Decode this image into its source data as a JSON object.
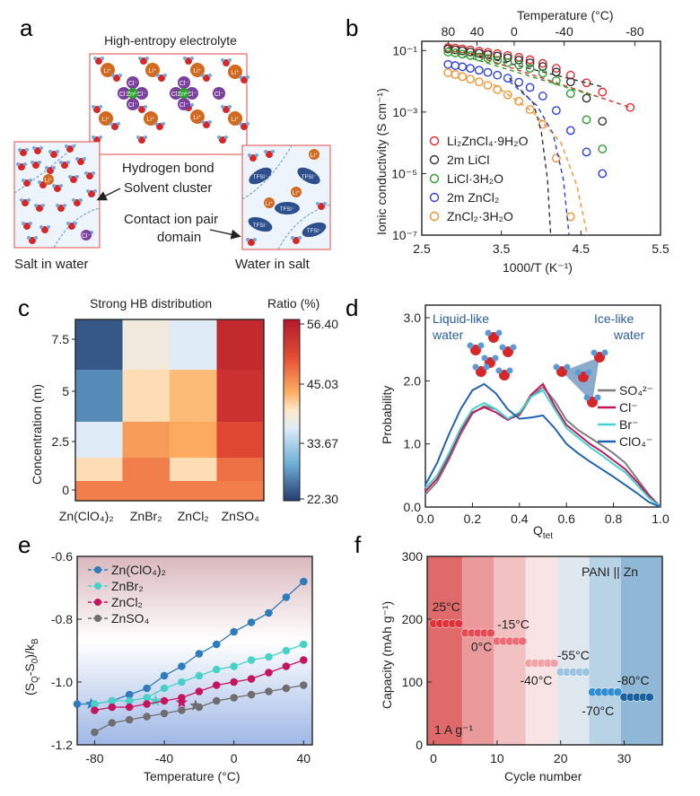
{
  "panel_labels": {
    "a": "a",
    "b": "b",
    "c": "c",
    "d": "d",
    "e": "e",
    "f": "f"
  },
  "panel_a": {
    "title": "High-entropy electrolyte",
    "label_hbond": "Hydrogen bond",
    "label_cluster": "Solvent cluster",
    "label_contact": "Contact ion pair",
    "label_domain": "domain",
    "label_salt_in_water": "Salt in water",
    "label_water_in_salt": "Water in salt",
    "ion_labels": {
      "li": "Li⁺",
      "cl": "Cl⁻",
      "zn": "Zn²⁺",
      "tfsi": "TFSI⁻"
    }
  },
  "chart_data": [
    {
      "panel": "b",
      "type": "scatter",
      "xlabel": "1000/T (K⁻¹)",
      "ylabel": "Ionic conductivity (S cm⁻¹)",
      "top_label": "Temperature (°C)",
      "top_ticks": [
        "80",
        "40",
        "0",
        "-40",
        "-80"
      ],
      "top_tick_temps_c": [
        80,
        40,
        0,
        -40,
        -80
      ],
      "xlim": [
        2.5,
        5.5
      ],
      "x_ticks": [
        "2.5",
        "3.5",
        "4.5",
        "5.5"
      ],
      "ylim_log10": [
        -7,
        -0.7
      ],
      "y_ticks": [
        "10⁻¹",
        "10⁻³",
        "10⁻⁵",
        "10⁻⁷"
      ],
      "y_tick_exp": [
        -1,
        -3,
        -5,
        -7
      ],
      "series": [
        {
          "name": "Li₂ZnCl₄·9H₂O",
          "color": "#e8292e",
          "x": [
            2.83,
            2.92,
            3.01,
            3.11,
            3.22,
            3.33,
            3.45,
            3.58,
            3.72,
            3.86,
            4.02,
            4.19,
            4.37,
            4.57,
            4.77,
            5.12
          ],
          "log10y": [
            -0.9,
            -0.92,
            -0.95,
            -0.98,
            -1.02,
            -1.06,
            -1.1,
            -1.16,
            -1.22,
            -1.3,
            -1.42,
            -1.58,
            -1.8,
            -2.05,
            -2.35,
            -2.85
          ],
          "fit_x": [
            2.83,
            5.12
          ],
          "fit_log10y": [
            -0.88,
            -2.85
          ]
        },
        {
          "name": "2m LiCl",
          "color": "#333333",
          "x": [
            2.83,
            2.92,
            3.01,
            3.11,
            3.22,
            3.33,
            3.45,
            3.58,
            3.72,
            3.86,
            4.02,
            4.19,
            4.37,
            4.57,
            4.77
          ],
          "log10y": [
            -0.95,
            -0.98,
            -1.01,
            -1.05,
            -1.09,
            -1.13,
            -1.18,
            -1.24,
            -1.31,
            -1.4,
            -1.52,
            -1.7,
            -2.02,
            -2.55,
            -3.3
          ],
          "fit_x": [
            2.83,
            4.8
          ],
          "fit_log10y": [
            -0.92,
            -2.2
          ]
        },
        {
          "name": "LiCl·3H₂O",
          "color": "#2ca02c",
          "x": [
            2.83,
            2.92,
            3.01,
            3.11,
            3.22,
            3.33,
            3.45,
            3.58,
            3.72,
            3.86,
            4.02,
            4.19,
            4.37,
            4.57,
            4.77
          ],
          "log10y": [
            -1.05,
            -1.08,
            -1.12,
            -1.16,
            -1.21,
            -1.26,
            -1.32,
            -1.39,
            -1.47,
            -1.58,
            -1.74,
            -1.98,
            -2.4,
            -3.25,
            -4.2
          ],
          "fit_x": [
            2.83,
            4.7
          ],
          "fit_log10y": [
            -1.02,
            -2.5
          ]
        },
        {
          "name": "2m ZnCl₂",
          "color": "#2c3fe0",
          "x": [
            2.83,
            2.92,
            3.01,
            3.11,
            3.22,
            3.33,
            3.45,
            3.58,
            3.72,
            3.86,
            4.02,
            4.19,
            4.37,
            4.57,
            4.77
          ],
          "log10y": [
            -1.45,
            -1.49,
            -1.53,
            -1.58,
            -1.64,
            -1.71,
            -1.8,
            -1.9,
            -2.03,
            -2.2,
            -2.48,
            -2.95,
            -3.6,
            -4.3,
            -5.0
          ]
        },
        {
          "name": "ZnCl₂·3H₂O",
          "color": "#f3922e",
          "x": [
            2.83,
            2.92,
            3.01,
            3.11,
            3.22,
            3.33,
            3.45,
            3.58,
            3.72,
            3.86,
            4.02,
            4.19,
            4.37
          ],
          "log10y": [
            -1.72,
            -1.78,
            -1.85,
            -1.93,
            -2.02,
            -2.13,
            -2.27,
            -2.44,
            -2.65,
            -2.92,
            -3.4,
            -4.5,
            -6.4
          ]
        }
      ],
      "vtf_curves": [
        {
          "color": "#333333",
          "x": [
            3.6,
            3.9,
            4.0,
            4.08,
            4.12
          ],
          "log10y": [
            -1.9,
            -2.7,
            -3.6,
            -5.2,
            -7.0
          ]
        },
        {
          "color": "#2c3fe0",
          "x": [
            3.6,
            3.95,
            4.15,
            4.28,
            4.35
          ],
          "log10y": [
            -2.0,
            -2.8,
            -3.7,
            -5.2,
            -7.0
          ]
        },
        {
          "color": "#f3922e",
          "x": [
            3.4,
            3.9,
            4.25,
            4.45,
            4.58
          ],
          "log10y": [
            -2.1,
            -3.0,
            -4.0,
            -5.4,
            -7.0
          ]
        }
      ]
    },
    {
      "panel": "c",
      "type": "heatmap",
      "title": "Strong HB distribution",
      "colorbar_title": "Ratio (%)",
      "colorbar_ticks": [
        "56.40",
        "45.03",
        "33.67",
        "22.30"
      ],
      "vmin": 22.3,
      "vmax": 56.4,
      "ylabel": "Concentration (m)",
      "y_ticks": [
        "7.5",
        "5",
        "2.5",
        "0"
      ],
      "columns": [
        "Zn(ClO₄)₂",
        "ZnBr₂",
        "ZnCl₂",
        "ZnSO₄"
      ],
      "row_concentrations": [
        7.5,
        5,
        2.5,
        1,
        0
      ],
      "values": [
        [
          24,
          38,
          36,
          54
        ],
        [
          27,
          40,
          42,
          53
        ],
        [
          36,
          44,
          43,
          50
        ],
        [
          40,
          46,
          40,
          47
        ],
        [
          46,
          46,
          46,
          46
        ]
      ]
    },
    {
      "panel": "d",
      "type": "line",
      "xlabel": "Q_tet",
      "ylabel": "Probability",
      "xlim": [
        0,
        1
      ],
      "ylim": [
        0,
        3.2
      ],
      "x_ticks": [
        "0.0",
        "0.2",
        "0.4",
        "0.6",
        "0.8",
        "1.0"
      ],
      "y_ticks": [
        "0.0",
        "1.0",
        "2.0",
        "3.0"
      ],
      "label_liquid": "Liquid-like\nwater",
      "label_ice": "Ice-like\nwater",
      "series": [
        {
          "name": "SO₄²⁻",
          "color": "#7f7f7f",
          "x": [
            0,
            0.05,
            0.1,
            0.15,
            0.2,
            0.25,
            0.3,
            0.35,
            0.4,
            0.45,
            0.5,
            0.55,
            0.6,
            0.65,
            0.7,
            0.75,
            0.8,
            0.85,
            0.9,
            0.95,
            1.0
          ],
          "y": [
            0.2,
            0.4,
            0.75,
            1.15,
            1.48,
            1.6,
            1.55,
            1.4,
            1.45,
            1.75,
            1.9,
            1.68,
            1.38,
            1.22,
            1.1,
            0.98,
            0.85,
            0.7,
            0.45,
            0.2,
            0.0
          ]
        },
        {
          "name": "Cl⁻",
          "color": "#c2185b",
          "x": [
            0,
            0.05,
            0.1,
            0.15,
            0.2,
            0.25,
            0.3,
            0.35,
            0.4,
            0.45,
            0.5,
            0.55,
            0.6,
            0.65,
            0.7,
            0.75,
            0.8,
            0.85,
            0.9,
            0.95,
            1.0
          ],
          "y": [
            0.25,
            0.45,
            0.8,
            1.2,
            1.5,
            1.58,
            1.5,
            1.38,
            1.48,
            1.78,
            1.95,
            1.6,
            1.3,
            1.15,
            1.0,
            0.88,
            0.74,
            0.6,
            0.4,
            0.18,
            0.0
          ]
        },
        {
          "name": "Br⁻",
          "color": "#3fd3d3",
          "x": [
            0,
            0.05,
            0.1,
            0.15,
            0.2,
            0.25,
            0.3,
            0.35,
            0.4,
            0.45,
            0.5,
            0.55,
            0.6,
            0.65,
            0.7,
            0.75,
            0.8,
            0.85,
            0.9,
            0.95,
            1.0
          ],
          "y": [
            0.3,
            0.5,
            0.85,
            1.25,
            1.55,
            1.65,
            1.55,
            1.4,
            1.5,
            1.75,
            1.85,
            1.55,
            1.25,
            1.1,
            0.95,
            0.82,
            0.68,
            0.55,
            0.35,
            0.15,
            0.0
          ]
        },
        {
          "name": "ClO₄⁻",
          "color": "#1f63b0",
          "x": [
            0,
            0.05,
            0.1,
            0.15,
            0.2,
            0.25,
            0.3,
            0.35,
            0.4,
            0.45,
            0.5,
            0.55,
            0.6,
            0.65,
            0.7,
            0.75,
            0.8,
            0.85,
            0.9,
            0.95,
            1.0
          ],
          "y": [
            0.35,
            0.7,
            1.15,
            1.55,
            1.85,
            1.95,
            1.8,
            1.55,
            1.4,
            1.42,
            1.45,
            1.25,
            1.0,
            0.85,
            0.72,
            0.6,
            0.48,
            0.35,
            0.22,
            0.08,
            0.0
          ]
        }
      ]
    },
    {
      "panel": "e",
      "type": "line",
      "xlabel": "Temperature (°C)",
      "ylabel": "(S_Q-S_0)/k_B",
      "xlim": [
        -90,
        45
      ],
      "ylim": [
        -1.2,
        -0.6
      ],
      "x_ticks": [
        "-80",
        "-40",
        "0",
        "40"
      ],
      "x_tick_values": [
        -80,
        -40,
        0,
        40
      ],
      "y_ticks": [
        "-0.6",
        "-0.8",
        "-1.0",
        "-1.2"
      ],
      "y_tick_values": [
        -0.6,
        -0.8,
        -1.0,
        -1.2
      ],
      "series": [
        {
          "name": "Zn(ClO₄)₂",
          "color": "#2e7bbd",
          "x": [
            -90,
            -80,
            -70,
            -60,
            -50,
            -40,
            -30,
            -20,
            -10,
            0,
            10,
            20,
            30,
            40
          ],
          "y": [
            -1.07,
            -1.07,
            -1.06,
            -1.04,
            -1.02,
            -0.98,
            -0.95,
            -0.91,
            -0.88,
            -0.84,
            -0.81,
            -0.78,
            -0.73,
            -0.68
          ],
          "star_x": -82,
          "star_y": -1.07
        },
        {
          "name": "ZnBr₂",
          "color": "#48d1c6",
          "x": [
            -80,
            -70,
            -60,
            -50,
            -40,
            -30,
            -20,
            -10,
            0,
            10,
            20,
            30,
            40
          ],
          "y": [
            -1.07,
            -1.06,
            -1.06,
            -1.05,
            -1.02,
            -1.0,
            -0.98,
            -0.96,
            -0.95,
            -0.93,
            -0.92,
            -0.9,
            -0.88
          ],
          "star_x": -45,
          "star_y": -1.06
        },
        {
          "name": "ZnCl₂",
          "color": "#c3155d",
          "x": [
            -80,
            -70,
            -60,
            -50,
            -40,
            -30,
            -20,
            -10,
            0,
            10,
            20,
            30,
            40
          ],
          "y": [
            -1.09,
            -1.08,
            -1.08,
            -1.07,
            -1.06,
            -1.05,
            -1.03,
            -1.01,
            -1.0,
            -0.99,
            -0.97,
            -0.95,
            -0.93
          ],
          "star_x": -30,
          "star_y": -1.065
        },
        {
          "name": "ZnSO₄",
          "color": "#6e6e6e",
          "x": [
            -80,
            -70,
            -60,
            -50,
            -40,
            -30,
            -20,
            -10,
            0,
            10,
            20,
            30,
            40
          ],
          "y": [
            -1.16,
            -1.13,
            -1.12,
            -1.11,
            -1.1,
            -1.09,
            -1.08,
            -1.06,
            -1.05,
            -1.04,
            -1.03,
            -1.02,
            -1.01
          ],
          "star_x": -22,
          "star_y": -1.075
        }
      ]
    },
    {
      "panel": "f",
      "type": "scatter",
      "xlabel": "Cycle number",
      "ylabel": "Capacity (mAh g⁻¹)",
      "xlim": [
        -1,
        36
      ],
      "ylim": [
        0,
        300
      ],
      "x_ticks": [
        "0",
        "10",
        "20",
        "30"
      ],
      "x_tick_values": [
        0,
        10,
        20,
        30
      ],
      "y_ticks": [
        "0",
        "100",
        "200",
        "300"
      ],
      "y_tick_values": [
        0,
        100,
        200,
        300
      ],
      "system_label": "PANI || Zn",
      "current_label": "1 A g⁻¹",
      "segments": [
        {
          "label": "25°C",
          "start": 0,
          "end": 4,
          "capacity": 193,
          "bg": "#e06a6a",
          "dot": "#e0303a"
        },
        {
          "label": "0°C",
          "start": 5,
          "end": 9,
          "capacity": 178,
          "bg": "#ea9a9a",
          "dot": "#e84a55"
        },
        {
          "label": "-15°C",
          "start": 10,
          "end": 14,
          "capacity": 165,
          "bg": "#f2c2c2",
          "dot": "#ef6a74"
        },
        {
          "label": "-40°C",
          "start": 15,
          "end": 19,
          "capacity": 130,
          "bg": "#f8e4e4",
          "dot": "#f3a0a6"
        },
        {
          "label": "-55°C",
          "start": 20,
          "end": 24,
          "capacity": 116,
          "bg": "#dfe8ef",
          "dot": "#9cc4e2"
        },
        {
          "label": "-70°C",
          "start": 25,
          "end": 29,
          "capacity": 84,
          "bg": "#b9d3e6",
          "dot": "#2f8ed0"
        },
        {
          "label": "-80°C",
          "start": 30,
          "end": 34,
          "capacity": 76,
          "bg": "#8fb7d6",
          "dot": "#1a5f9e"
        }
      ]
    }
  ]
}
